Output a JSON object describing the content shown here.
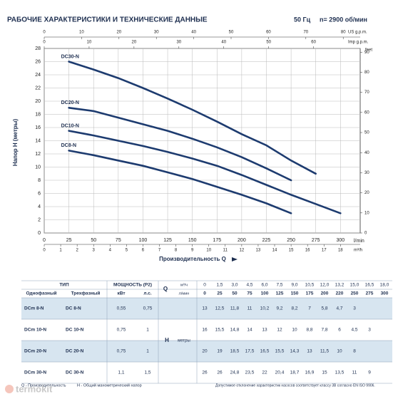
{
  "header": {
    "title": "РАБОЧИЕ ХАРАКТЕРИСТИКИ И ТЕХНИЧЕСКИЕ ДАННЫЕ",
    "freq": "50 Гц",
    "speed": "n= 2900 об/мин"
  },
  "chart_data": {
    "type": "line",
    "ylabel": "Напор H (метры)",
    "xlabel": "Производительность Q",
    "xunit": "l/min",
    "xlim": [
      0,
      320
    ],
    "xticks": [
      0,
      25,
      50,
      75,
      100,
      125,
      150,
      175,
      200,
      225,
      250,
      275,
      300
    ],
    "ylim": [
      0,
      28
    ],
    "yticks": [
      0,
      2,
      4,
      6,
      8,
      10,
      12,
      14,
      16,
      18,
      20,
      22,
      24,
      26,
      28
    ],
    "x_top": {
      "unit": "US g.p.m.",
      "lim": [
        0,
        84.54
      ],
      "ticks": [
        0,
        10,
        20,
        30,
        40,
        50,
        60,
        70,
        80
      ]
    },
    "x_top2": {
      "unit": "Imp g.p.m.",
      "lim": [
        0,
        70.39
      ],
      "ticks": [
        0,
        10,
        20,
        30,
        40,
        50,
        60
      ]
    },
    "x_bottom2": {
      "unit": "m³/h",
      "lim": [
        0,
        19.2
      ],
      "ticks": [
        0,
        1,
        2,
        3,
        4,
        5,
        6,
        7,
        8,
        9,
        10,
        11,
        12,
        13,
        14,
        15,
        16,
        17,
        18
      ]
    },
    "y2label": "feet",
    "y2lim": [
      0,
      91.86
    ],
    "y2ticks": [
      0,
      10,
      20,
      30,
      40,
      50,
      60,
      70,
      80,
      90
    ],
    "grid": true,
    "x": [
      25,
      50,
      75,
      100,
      125,
      150,
      175,
      200,
      225,
      250,
      275,
      300
    ],
    "series": [
      {
        "name": "DC30-N",
        "color": "#1d3b6f",
        "values": [
          26,
          24.8,
          23.5,
          22,
          20.4,
          18.7,
          16.9,
          15,
          13.3,
          11,
          9,
          null
        ]
      },
      {
        "name": "DC20-N",
        "color": "#1d3b6f",
        "values": [
          19,
          18.5,
          17.5,
          16.5,
          15.5,
          14.3,
          13,
          11.5,
          9.8,
          8,
          null,
          null
        ]
      },
      {
        "name": "DC10-N",
        "color": "#1d3b6f",
        "values": [
          15.5,
          14.8,
          14,
          13.2,
          12.3,
          11.3,
          10.2,
          8.8,
          7.3,
          5.8,
          4.4,
          3
        ]
      },
      {
        "name": "DC8-N",
        "color": "#1d3b6f",
        "values": [
          12.5,
          11.8,
          11,
          10.2,
          9.2,
          8.2,
          7,
          5.8,
          4.5,
          3,
          null,
          null
        ]
      }
    ]
  },
  "table": {
    "type": "ТИП",
    "single": "Однофазный",
    "three": "Трехфазный",
    "power": "МОЩНОСТЬ (P2)",
    "kw": "кВт",
    "hp": "л.с.",
    "q": "Q",
    "m3h": "м³/ч",
    "lmin": "л/мин",
    "h": "H",
    "h_unit": "метры",
    "q_m3h": [
      "0",
      "1,5",
      "3,0",
      "4,5",
      "6,0",
      "7,5",
      "9,0",
      "10,5",
      "12,0",
      "13,2",
      "15,0",
      "16,5",
      "18,0"
    ],
    "q_lmin": [
      0,
      25,
      50,
      75,
      100,
      125,
      150,
      175,
      200,
      220,
      250,
      275,
      300
    ],
    "rows": [
      {
        "single": "DCm 8-N",
        "three": "DC 8-N",
        "kw": "0,55",
        "hp": "0,75",
        "h": [
          13,
          "12,5",
          "11,8",
          11,
          "10,2",
          "9,2",
          "8,2",
          7,
          "5,8",
          "4,7",
          3
        ]
      },
      {
        "single": "DCm 10-N",
        "three": "DC 10-N",
        "kw": "0,75",
        "hp": "1",
        "h": [
          16,
          "15,5",
          "14,8",
          14,
          13,
          12,
          10,
          "8,8",
          "7,8",
          6,
          "4,5",
          3
        ]
      },
      {
        "single": "DCm 20-N",
        "three": "DC 20-N",
        "kw": "0,75",
        "hp": "1",
        "h": [
          20,
          19,
          "18,5",
          "17,5",
          "16,5",
          "15,5",
          "14,3",
          13,
          "11,5",
          10,
          8
        ]
      },
      {
        "single": "DCm 30-N",
        "three": "DC 30-N",
        "kw": "1,1",
        "hp": "1,5",
        "h": [
          26,
          26,
          "24,8",
          "23,5",
          22,
          "20,4",
          "18,7",
          "16,9",
          15,
          "13,5",
          11,
          9
        ]
      }
    ]
  },
  "footer": {
    "q_note": "Q - Производительность",
    "h_note": "H - Общий манометрический напор",
    "tolerance": "Допустимое отклонение характеристик насосов соответствует классу 3B согласно EN ISO 9906."
  },
  "watermark": "termokit"
}
